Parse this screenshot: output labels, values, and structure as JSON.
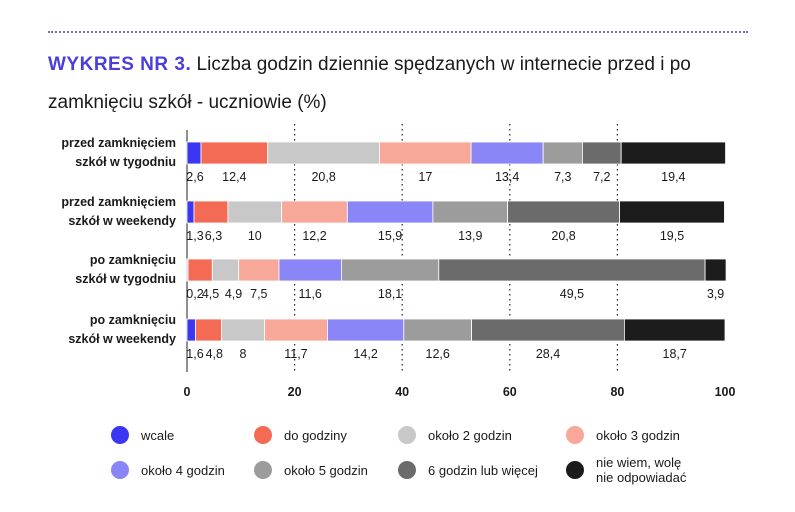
{
  "header": {
    "title_prefix": "WYKRES NR 3.",
    "title_text": " Liczba godzin dziennie spędzanych w internecie przed i po zamknięciu szkół - uczniowie (%)"
  },
  "colors": {
    "title_accent": "#4a3fd8",
    "series": [
      "#3b36f2",
      "#f36a55",
      "#c8c8c8",
      "#f8a898",
      "#8a86f7",
      "#9c9c9c",
      "#6b6b6b",
      "#1c1c1c"
    ]
  },
  "chart_data": {
    "type": "bar",
    "orientation": "horizontal",
    "stacked": true,
    "categories": [
      [
        "przed zamknięciem",
        "szkół w tygodniu"
      ],
      [
        "przed zamknięciem",
        "szkół w weekendy"
      ],
      [
        "po zamknięciu",
        "szkół w tygodniu"
      ],
      [
        "po zamknięciu",
        "szkół w weekendy"
      ]
    ],
    "series": [
      {
        "name": "wcale",
        "values": [
          2.6,
          1.3,
          0.2,
          1.6
        ]
      },
      {
        "name": "do godziny",
        "values": [
          12.4,
          6.3,
          4.5,
          4.8
        ]
      },
      {
        "name": "około 2 godzin",
        "values": [
          20.8,
          10,
          4.9,
          8
        ]
      },
      {
        "name": "około 3 godzin",
        "values": [
          17,
          12.2,
          7.5,
          11.7
        ]
      },
      {
        "name": "około 4 godzin",
        "values": [
          13.4,
          15.9,
          11.6,
          14.2
        ]
      },
      {
        "name": "około 5 godzin",
        "values": [
          7.3,
          13.9,
          18.1,
          12.6
        ]
      },
      {
        "name": "6 godzin lub więcej",
        "values": [
          7.2,
          20.8,
          49.5,
          28.4
        ]
      },
      {
        "name": "nie wiem, wolę nie odpowiadać",
        "values": [
          19.4,
          19.5,
          3.9,
          18.7
        ]
      }
    ],
    "data_labels": [
      [
        "2,6",
        "12,4",
        "20,8",
        "17",
        "13,4",
        "7,3",
        "7,2",
        "19,4"
      ],
      [
        "1,3",
        "6,3",
        "10",
        "12,2",
        "15,9",
        "13,9",
        "20,8",
        "19,5"
      ],
      [
        "0,2",
        "4,5",
        "4,9",
        "7,5",
        "11,6",
        "18,1",
        "49,5",
        "3,9"
      ],
      [
        "1,6",
        "4,8",
        "8",
        "11,7",
        "14,2",
        "12,6",
        "28,4",
        "18,7"
      ]
    ],
    "xlim": [
      0,
      100
    ],
    "xticks": [
      0,
      20,
      40,
      60,
      80,
      100
    ],
    "xtick_labels": [
      "0",
      "20",
      "40",
      "60",
      "80",
      "100"
    ],
    "grid": "vertical dotted",
    "legend_position": "bottom"
  },
  "legend": [
    {
      "label": "wcale",
      "lines": [
        "wcale"
      ]
    },
    {
      "label": "do godziny",
      "lines": [
        "do godziny"
      ]
    },
    {
      "label": "około 2 godzin",
      "lines": [
        "około 2 godzin"
      ]
    },
    {
      "label": "około 3 godzin",
      "lines": [
        "około 3 godzin"
      ]
    },
    {
      "label": "około 4 godzin",
      "lines": [
        "około 4 godzin"
      ]
    },
    {
      "label": "około 5 godzin",
      "lines": [
        "około 5 godzin"
      ]
    },
    {
      "label": "6 godzin lub więcej",
      "lines": [
        "6 godzin lub więcej"
      ]
    },
    {
      "label": "nie wiem, wolę nie odpowiadać",
      "lines": [
        "nie wiem, wolę",
        "nie odpowiadać"
      ]
    }
  ]
}
